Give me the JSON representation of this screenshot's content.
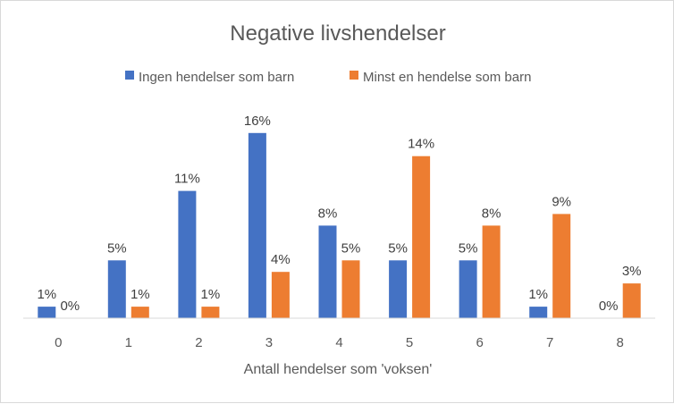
{
  "chart_data": {
    "type": "bar",
    "title": "Negative livshendelser",
    "xlabel": "Antall hendelser som 'voksen'",
    "ylabel": "",
    "categories": [
      "0",
      "1",
      "2",
      "3",
      "4",
      "5",
      "6",
      "7",
      "8"
    ],
    "series": [
      {
        "name": "Ingen hendelser som barn",
        "color": "#4472C4",
        "values": [
          1,
          5,
          11,
          16,
          8,
          5,
          5,
          1,
          0
        ],
        "labels": [
          "1%",
          "5%",
          "11%",
          "16%",
          "8%",
          "5%",
          "5%",
          "1%",
          "0%"
        ]
      },
      {
        "name": "Minst en hendelse som barn",
        "color": "#ED7D31",
        "values": [
          0,
          1,
          1,
          4,
          5,
          14,
          8,
          9,
          3
        ],
        "labels": [
          "0%",
          "1%",
          "1%",
          "4%",
          "5%",
          "14%",
          "8%",
          "9%",
          "3%"
        ]
      }
    ],
    "ylim": [
      0,
      17
    ],
    "grid": false,
    "legend_position": "top"
  }
}
